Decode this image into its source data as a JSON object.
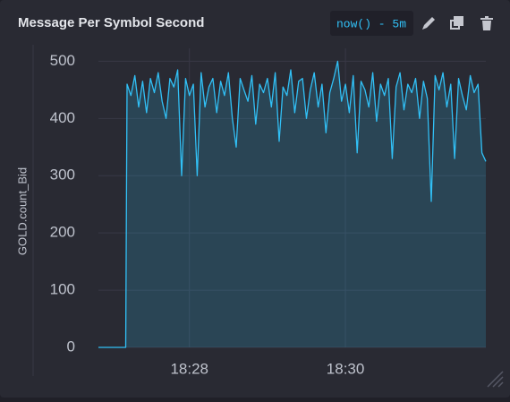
{
  "header": {
    "title": "Message Per Symbol Second",
    "time_range": "now() - 5m"
  },
  "chart_data": {
    "type": "line",
    "ylabel": "GOLD.count_Bid",
    "color": "#31c0f6",
    "area": true,
    "x": [
      "18:26:50",
      "18:27:11",
      "18:27:12",
      "18:27:15",
      "18:27:18",
      "18:27:21",
      "18:27:24",
      "18:27:27",
      "18:27:30",
      "18:27:33",
      "18:27:36",
      "18:27:39",
      "18:27:42",
      "18:27:45",
      "18:27:48",
      "18:27:51",
      "18:27:54",
      "18:27:57",
      "18:28:00",
      "18:28:03",
      "18:28:06",
      "18:28:09",
      "18:28:12",
      "18:28:15",
      "18:28:18",
      "18:28:21",
      "18:28:24",
      "18:28:27",
      "18:28:30",
      "18:28:33",
      "18:28:36",
      "18:28:39",
      "18:28:42",
      "18:28:45",
      "18:28:48",
      "18:28:51",
      "18:28:54",
      "18:28:57",
      "18:29:00",
      "18:29:03",
      "18:29:06",
      "18:29:09",
      "18:29:12",
      "18:29:15",
      "18:29:18",
      "18:29:21",
      "18:29:24",
      "18:29:27",
      "18:29:30",
      "18:29:33",
      "18:29:36",
      "18:29:39",
      "18:29:42",
      "18:29:45",
      "18:29:48",
      "18:29:51",
      "18:29:54",
      "18:29:57",
      "18:30:00",
      "18:30:03",
      "18:30:06",
      "18:30:09",
      "18:30:12",
      "18:30:15",
      "18:30:18",
      "18:30:21",
      "18:30:24",
      "18:30:27",
      "18:30:30",
      "18:30:33",
      "18:30:36",
      "18:30:39",
      "18:30:42",
      "18:30:45",
      "18:30:48",
      "18:30:51",
      "18:30:54",
      "18:30:57",
      "18:31:00",
      "18:31:03",
      "18:31:06",
      "18:31:09",
      "18:31:12",
      "18:31:15",
      "18:31:18",
      "18:31:21",
      "18:31:24",
      "18:31:27",
      "18:31:30",
      "18:31:33",
      "18:31:36",
      "18:31:39",
      "18:31:42",
      "18:31:45",
      "18:31:48"
    ],
    "values": [
      0,
      0,
      460,
      440,
      475,
      420,
      465,
      410,
      470,
      445,
      480,
      430,
      400,
      470,
      455,
      485,
      300,
      470,
      440,
      460,
      300,
      480,
      420,
      455,
      470,
      410,
      465,
      440,
      480,
      400,
      350,
      470,
      450,
      430,
      475,
      390,
      460,
      445,
      470,
      420,
      480,
      360,
      455,
      440,
      485,
      410,
      465,
      470,
      400,
      450,
      480,
      420,
      460,
      375,
      445,
      470,
      500,
      430,
      460,
      410,
      475,
      340,
      465,
      450,
      420,
      480,
      395,
      460,
      440,
      470,
      330,
      455,
      480,
      415,
      460,
      445,
      470,
      400,
      465,
      435,
      255,
      475,
      450,
      480,
      420,
      460,
      330,
      470,
      440,
      415,
      475,
      445,
      460,
      340,
      325
    ],
    "xlim": [
      "18:26:50",
      "18:31:48"
    ],
    "xticks": [
      "18:28",
      "18:30"
    ],
    "ylim": [
      0,
      510
    ],
    "yticks": [
      0,
      100,
      200,
      300,
      400,
      500
    ],
    "grid": true
  }
}
